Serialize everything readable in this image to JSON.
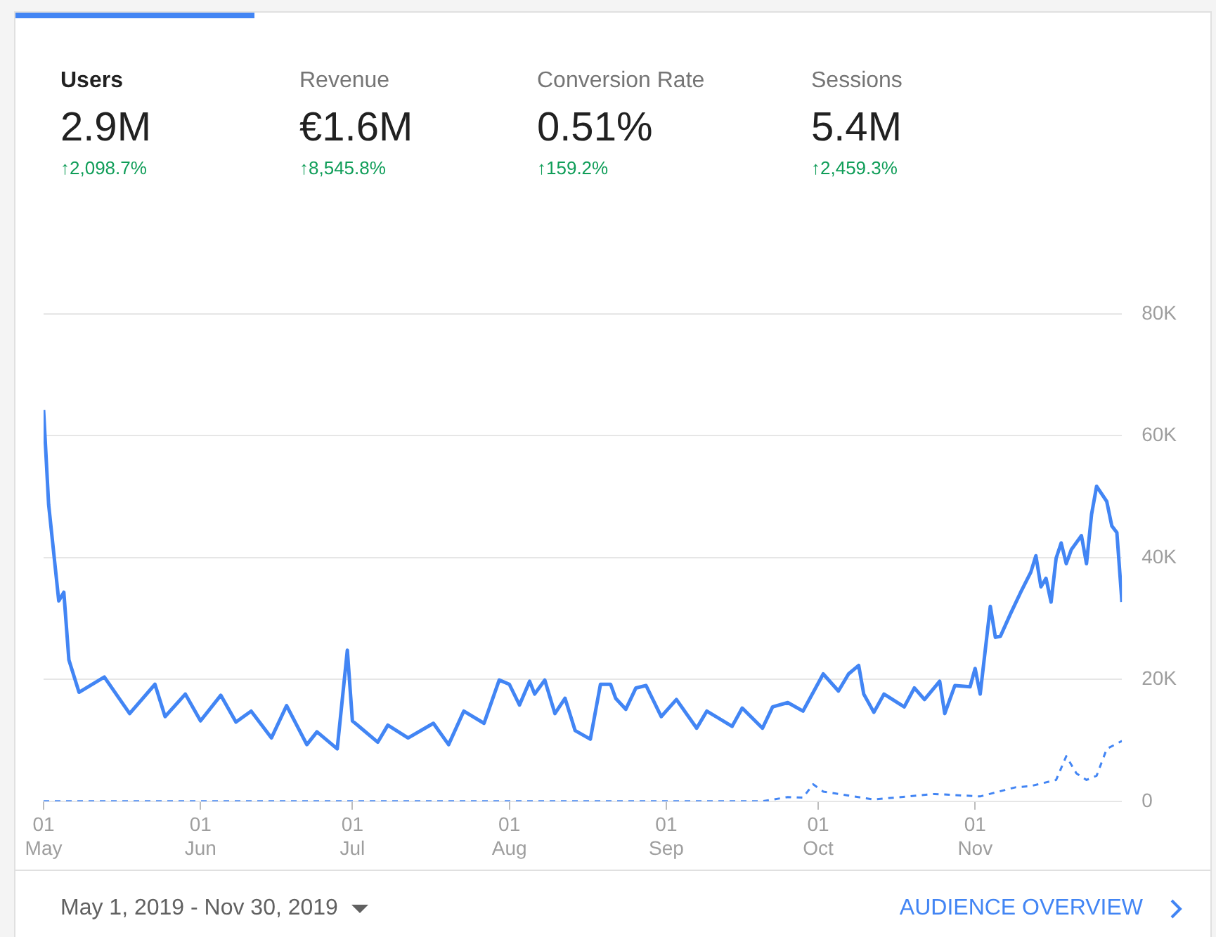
{
  "chart_data": {
    "type": "line",
    "annotations": [
      "Users",
      "2.9M",
      "↑2,098.7%",
      "Revenue",
      "€1.6M",
      "↑8,545.8%",
      "Conversion Rate",
      "0.51%",
      "↑159.2%",
      "Sessions",
      "5.4M",
      "↑2,459.3%",
      "May 1, 2019 - Nov 30, 2019",
      "AUDIENCE OVERVIEW"
    ],
    "series": [
      {
        "color": "#4285f4",
        "line_style": "solid",
        "x": [
          "2019-05-01",
          "2019-05-02",
          "2019-05-04",
          "2019-05-05",
          "2019-05-06",
          "2019-05-08",
          "2019-05-13",
          "2019-05-18",
          "2019-05-23",
          "2019-05-25",
          "2019-05-29",
          "2019-06-01",
          "2019-06-05",
          "2019-06-08",
          "2019-06-11",
          "2019-06-15",
          "2019-06-18",
          "2019-06-22",
          "2019-06-24",
          "2019-06-28",
          "2019-06-30",
          "2019-07-01",
          "2019-07-06",
          "2019-07-08",
          "2019-07-12",
          "2019-07-17",
          "2019-07-20",
          "2019-07-23",
          "2019-07-27",
          "2019-07-30",
          "2019-08-01",
          "2019-08-03",
          "2019-08-05",
          "2019-08-06",
          "2019-08-08",
          "2019-08-10",
          "2019-08-12",
          "2019-08-14",
          "2019-08-17",
          "2019-08-19",
          "2019-08-21",
          "2019-08-22",
          "2019-08-24",
          "2019-08-26",
          "2019-08-28",
          "2019-08-31",
          "2019-09-03",
          "2019-09-07",
          "2019-09-09",
          "2019-09-14",
          "2019-09-16",
          "2019-09-20",
          "2019-09-22",
          "2019-09-25",
          "2019-09-28",
          "2019-10-02",
          "2019-10-05",
          "2019-10-07",
          "2019-10-09",
          "2019-10-10",
          "2019-10-12",
          "2019-10-14",
          "2019-10-18",
          "2019-10-20",
          "2019-10-22",
          "2019-10-25",
          "2019-10-26",
          "2019-10-28",
          "2019-10-31",
          "2019-11-01",
          "2019-11-02",
          "2019-11-04",
          "2019-11-05",
          "2019-11-06",
          "2019-11-08",
          "2019-11-10",
          "2019-11-12",
          "2019-11-13",
          "2019-11-14",
          "2019-11-15",
          "2019-11-16",
          "2019-11-17",
          "2019-11-18",
          "2019-11-19",
          "2019-11-20",
          "2019-11-22",
          "2019-11-23",
          "2019-11-24",
          "2019-11-25",
          "2019-11-27",
          "2019-11-28",
          "2019-11-29",
          "2019-11-30"
        ],
        "values": [
          64200,
          48700,
          32900,
          34300,
          23200,
          17900,
          20400,
          14400,
          19200,
          13900,
          17600,
          13200,
          17400,
          13000,
          14800,
          10400,
          15700,
          9300,
          11400,
          8600,
          24800,
          13200,
          9700,
          12500,
          10400,
          12800,
          9300,
          14800,
          12800,
          19900,
          19200,
          15800,
          19700,
          17600,
          19900,
          14400,
          16900,
          11600,
          10200,
          19200,
          19200,
          16900,
          15100,
          18600,
          19000,
          13900,
          16700,
          12000,
          14800,
          12300,
          15300,
          12000,
          15500,
          16200,
          14800,
          20900,
          18100,
          20900,
          22300,
          17600,
          14600,
          17600,
          15500,
          18600,
          16700,
          19700,
          14400,
          19000,
          18800,
          21800,
          17600,
          32000,
          26900,
          27100,
          30800,
          34300,
          37600,
          40300,
          35200,
          36600,
          32700,
          39900,
          42400,
          39000,
          41300,
          43600,
          39000,
          47100,
          51700,
          49200,
          45200,
          44100,
          32700
        ]
      },
      {
        "color": "#4285f4",
        "line_style": "dashed",
        "x": [
          "2019-05-01",
          "2019-09-20",
          "2019-09-25",
          "2019-09-28",
          "2019-09-30",
          "2019-10-02",
          "2019-10-12",
          "2019-10-24",
          "2019-11-02",
          "2019-11-09",
          "2019-11-12",
          "2019-11-17",
          "2019-11-19",
          "2019-11-21",
          "2019-11-23",
          "2019-11-25",
          "2019-11-27",
          "2019-11-30"
        ],
        "values": [
          0,
          0,
          700,
          600,
          2800,
          1600,
          300,
          1200,
          800,
          2300,
          2500,
          3500,
          7400,
          4600,
          3500,
          4200,
          8600,
          9900
        ]
      }
    ],
    "xlim": [
      "2019-05-01",
      "2019-11-30"
    ],
    "xticks": [
      {
        "value": "2019-05-01",
        "label": "01\nMay"
      },
      {
        "value": "2019-06-01",
        "label": "01\nJun"
      },
      {
        "value": "2019-07-01",
        "label": "01\nJul"
      },
      {
        "value": "2019-08-01",
        "label": "01\nAug"
      },
      {
        "value": "2019-09-01",
        "label": "01\nSep"
      },
      {
        "value": "2019-10-01",
        "label": "01\nOct"
      },
      {
        "value": "2019-11-01",
        "label": "01\nNov"
      }
    ],
    "ylim": [
      0,
      80000
    ],
    "yticks": [
      {
        "value": 0,
        "label": "0"
      },
      {
        "value": 20000,
        "label": "20K"
      },
      {
        "value": 40000,
        "label": "40K"
      },
      {
        "value": 60000,
        "label": "60K"
      },
      {
        "value": 80000,
        "label": "80K"
      }
    ],
    "grid": "y",
    "legend": false,
    "marker": "none"
  }
}
